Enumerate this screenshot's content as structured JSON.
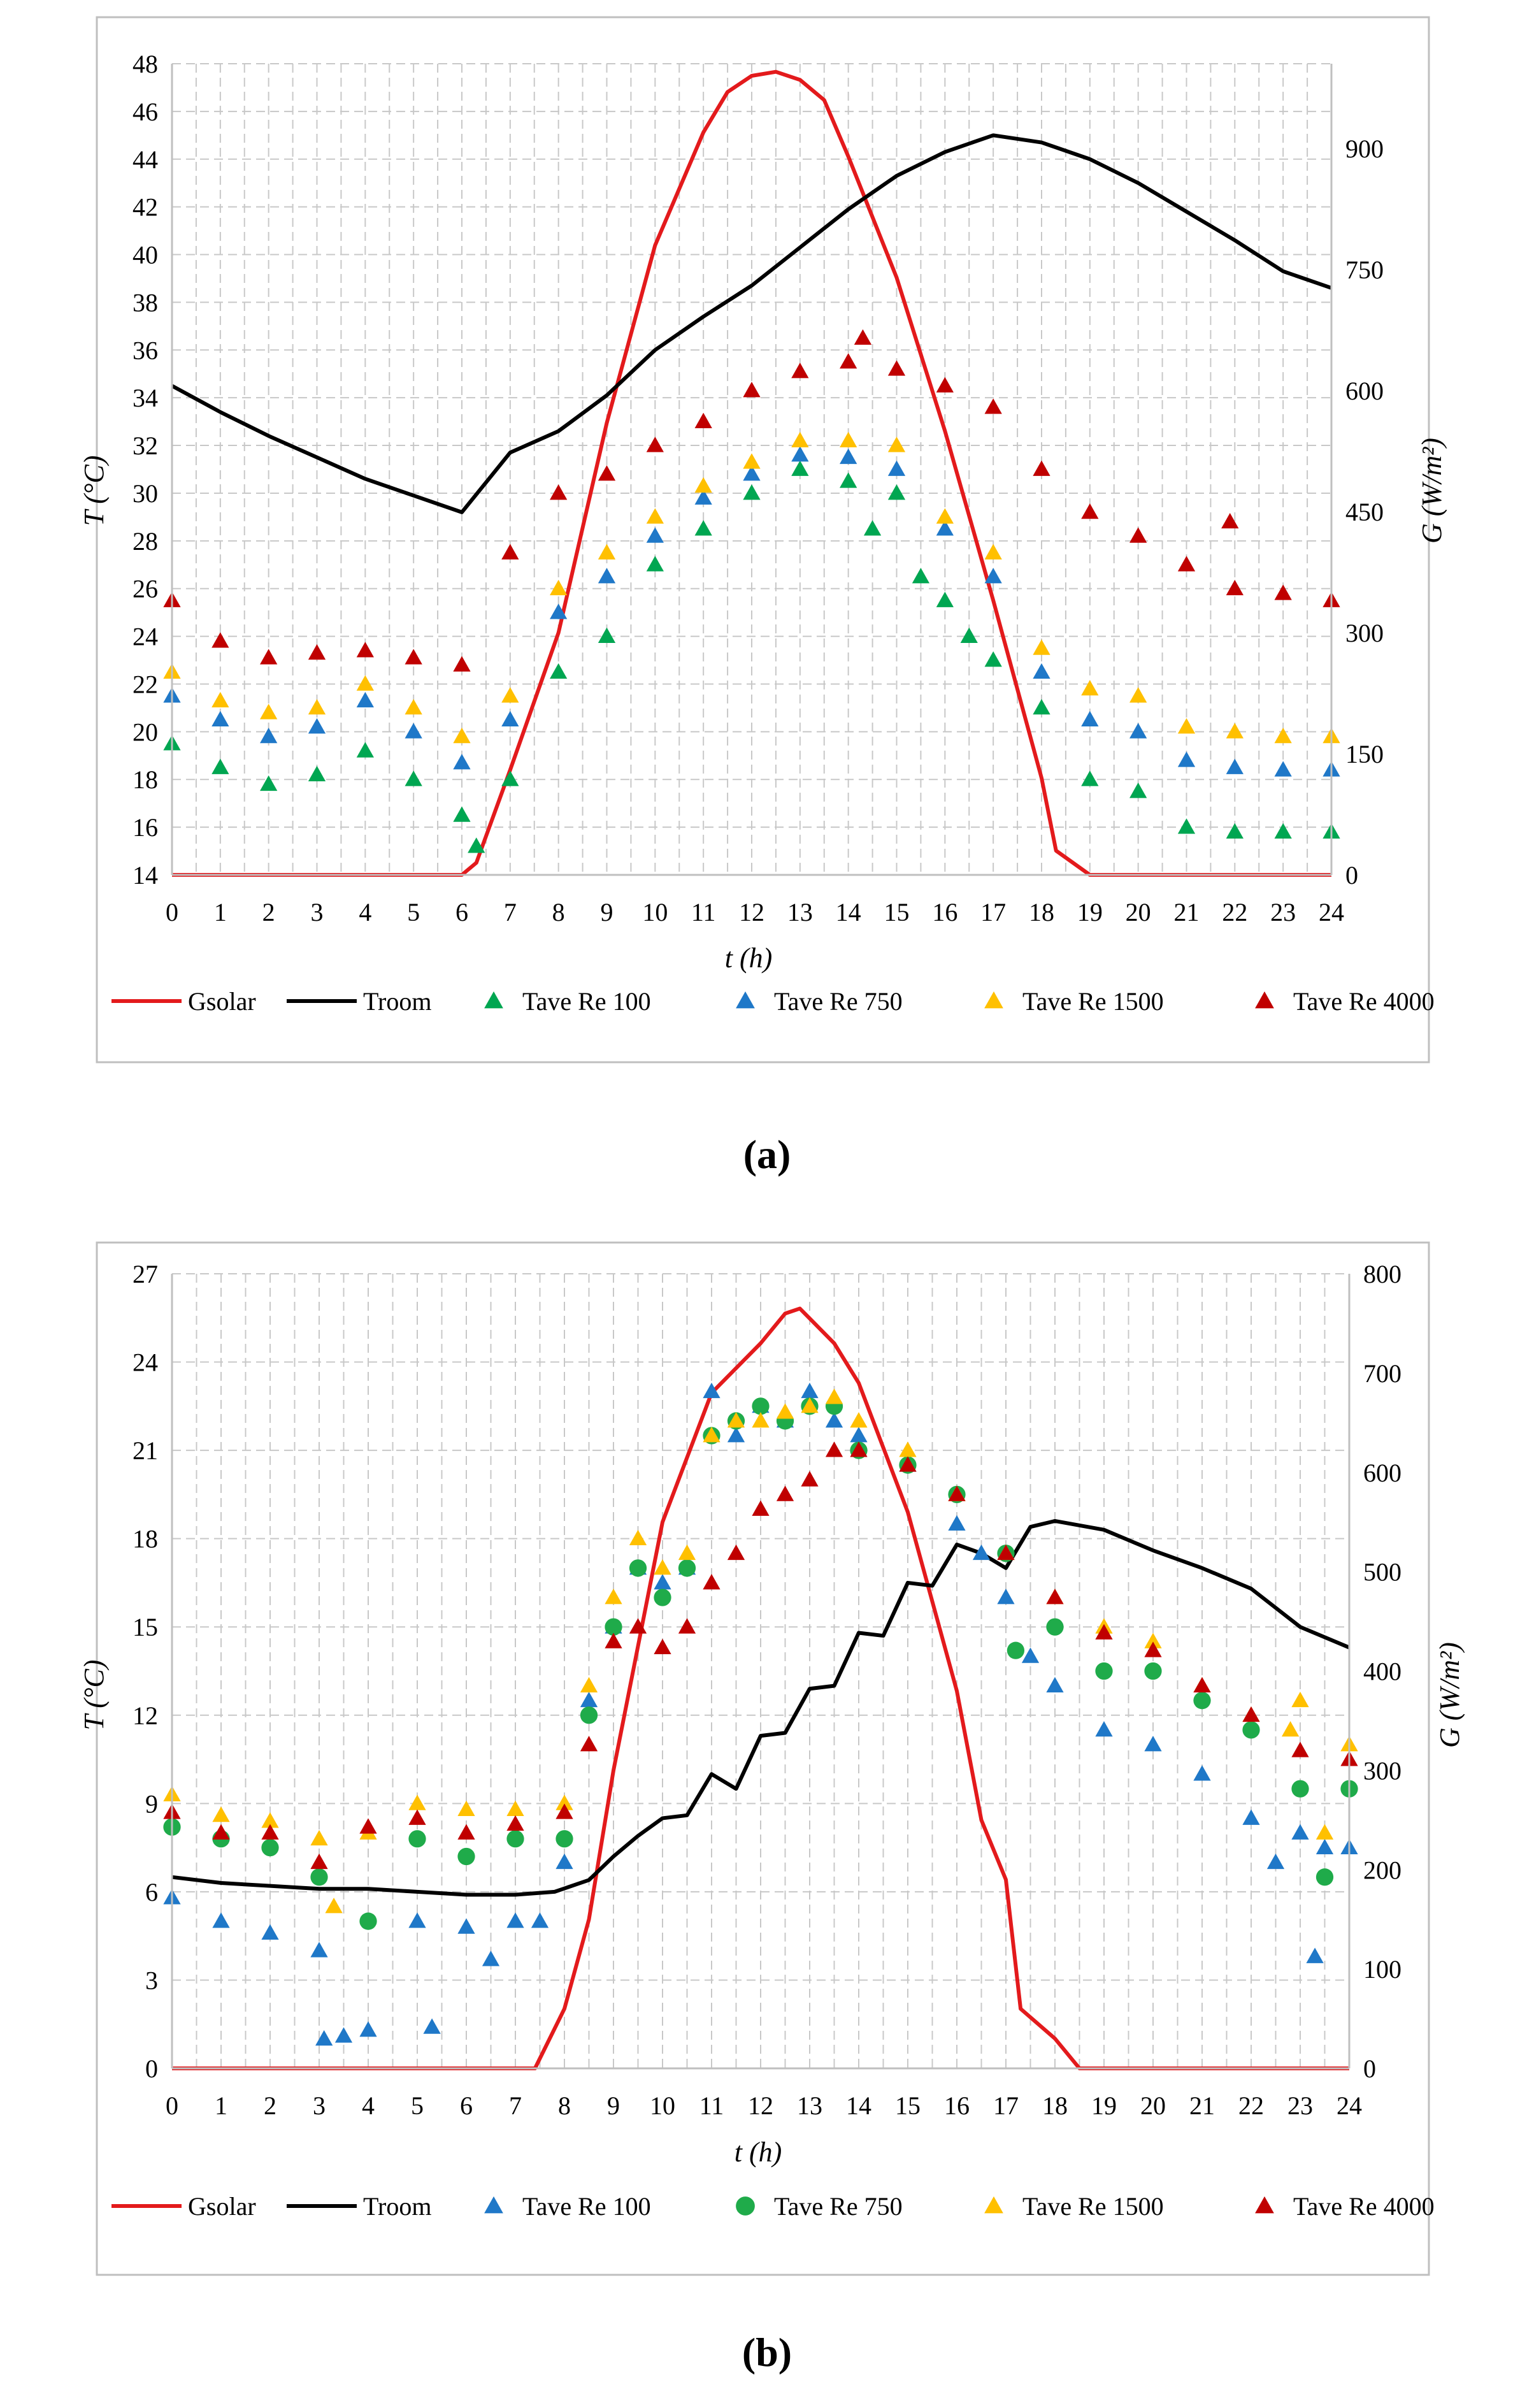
{
  "colors": {
    "gsolar": "#e31a1c",
    "troom": "#000000",
    "re100_a": "#00a651",
    "re750_a": "#1f78c8",
    "re1500": "#ffc000",
    "re4000": "#c00000",
    "re100_b": "#1f78c8",
    "re750_b": "#1fab4a",
    "grid": "#c8c8c8"
  },
  "figure": {
    "caption_a": "(a)",
    "caption_b": "(b)"
  },
  "chart_data": [
    {
      "id": "a",
      "type": "line",
      "caption": "(a)",
      "xlabel": "t (h)",
      "ylabel": "T (°C)",
      "y2label": "G (W/m²)",
      "xlim": [
        0,
        24
      ],
      "ylim": [
        14,
        48
      ],
      "y2lim": [
        0,
        1005
      ],
      "xticks": [
        "0",
        "1",
        "2",
        "3",
        "4",
        "5",
        "6",
        "7",
        "8",
        "9",
        "10",
        "11",
        "12",
        "13",
        "14",
        "15",
        "16",
        "17",
        "18",
        "19",
        "20",
        "21",
        "22",
        "23",
        "24"
      ],
      "yticks": [
        "14",
        "16",
        "18",
        "20",
        "22",
        "24",
        "26",
        "28",
        "30",
        "32",
        "34",
        "36",
        "38",
        "40",
        "42",
        "44",
        "46",
        "48"
      ],
      "y2ticks": [
        "0",
        "150",
        "300",
        "450",
        "600",
        "750",
        "900"
      ],
      "grid": true,
      "legend": [
        "Gsolar",
        "Troom",
        "Tave Re 100",
        "Tave Re 750",
        "Tave Re 1500",
        "Tave Re 4000"
      ],
      "series": [
        {
          "name": "Gsolar",
          "kind": "line",
          "axis": "right",
          "color": "#e31a1c",
          "x": [
            0,
            6,
            6.3,
            7,
            8,
            9,
            10,
            11,
            11.5,
            12,
            12.5,
            13,
            13.5,
            14,
            15,
            16,
            17,
            17.5,
            18,
            18.3,
            19,
            24
          ],
          "y": [
            0,
            0,
            15,
            130,
            300,
            560,
            780,
            920,
            970,
            990,
            995,
            985,
            960,
            890,
            740,
            550,
            340,
            230,
            120,
            30,
            0,
            0
          ]
        },
        {
          "name": "Troom",
          "kind": "line",
          "axis": "left",
          "color": "#000000",
          "x": [
            0,
            1,
            2,
            3,
            4,
            5,
            6,
            7,
            8,
            9,
            10,
            11,
            12,
            13,
            14,
            15,
            16,
            17,
            18,
            19,
            20,
            21,
            22,
            23,
            24
          ],
          "y": [
            34.5,
            33.4,
            32.4,
            31.5,
            30.6,
            29.9,
            29.2,
            31.7,
            32.6,
            34.1,
            36.0,
            37.4,
            38.7,
            40.3,
            41.9,
            43.3,
            44.3,
            45.0,
            44.7,
            44.0,
            43.0,
            41.8,
            40.6,
            39.3,
            38.6
          ]
        },
        {
          "name": "Tave Re 100",
          "kind": "triangle",
          "axis": "left",
          "color": "#00a651",
          "x": [
            0,
            1,
            2,
            3,
            4,
            5,
            6,
            6.3,
            7,
            8,
            9,
            10,
            11,
            12,
            13,
            14,
            14.5,
            15,
            15.5,
            16,
            16.5,
            17,
            18,
            19,
            20,
            21,
            22,
            23,
            24
          ],
          "y": [
            19.5,
            18.5,
            17.8,
            18.2,
            19.2,
            18.0,
            16.5,
            15.2,
            18.0,
            22.5,
            24.0,
            27.0,
            28.5,
            30.0,
            31.0,
            30.5,
            28.5,
            30.0,
            26.5,
            25.5,
            24.0,
            23.0,
            21.0,
            18.0,
            17.5,
            16.0,
            15.8,
            15.8,
            15.8
          ]
        },
        {
          "name": "Tave Re 750",
          "kind": "triangle",
          "axis": "left",
          "color": "#1f78c8",
          "x": [
            0,
            1,
            2,
            3,
            4,
            5,
            6,
            7,
            8,
            9,
            10,
            11,
            12,
            13,
            14,
            15,
            16,
            17,
            18,
            19,
            20,
            21,
            22,
            23,
            24
          ],
          "y": [
            21.5,
            20.5,
            19.8,
            20.2,
            21.3,
            20.0,
            18.7,
            20.5,
            25.0,
            26.5,
            28.2,
            29.8,
            30.8,
            31.6,
            31.5,
            31.0,
            28.5,
            26.5,
            22.5,
            20.5,
            20.0,
            18.8,
            18.5,
            18.4,
            18.4
          ]
        },
        {
          "name": "Tave Re 1500",
          "kind": "triangle",
          "axis": "left",
          "color": "#ffc000",
          "x": [
            0,
            1,
            2,
            3,
            4,
            5,
            6,
            7,
            8,
            9,
            10,
            11,
            12,
            13,
            14,
            15,
            16,
            17,
            18,
            19,
            20,
            21,
            22,
            23,
            24
          ],
          "y": [
            22.5,
            21.3,
            20.8,
            21.0,
            22.0,
            21.0,
            19.8,
            21.5,
            26.0,
            27.5,
            29.0,
            30.3,
            31.3,
            32.2,
            32.2,
            32.0,
            29.0,
            27.5,
            23.5,
            21.8,
            21.5,
            20.2,
            20.0,
            19.8,
            19.8
          ]
        },
        {
          "name": "Tave Re 4000",
          "kind": "triangle",
          "axis": "left",
          "color": "#c00000",
          "x": [
            0,
            1,
            2,
            3,
            4,
            5,
            6,
            7,
            8,
            9,
            10,
            11,
            12,
            13,
            14,
            14.3,
            15,
            16,
            17,
            18,
            19,
            20,
            21,
            21.9,
            22,
            23,
            24
          ],
          "y": [
            25.5,
            23.8,
            23.1,
            23.3,
            23.4,
            23.1,
            22.8,
            27.5,
            30.0,
            30.8,
            32.0,
            33.0,
            34.3,
            35.1,
            35.5,
            36.5,
            35.2,
            34.5,
            33.6,
            31.0,
            29.2,
            28.2,
            27.0,
            28.8,
            26.0,
            25.8,
            25.5
          ]
        }
      ]
    },
    {
      "id": "b",
      "type": "line",
      "caption": "(b)",
      "xlabel": "t (h)",
      "ylabel": "T (°C)",
      "y2label": "G (W/m²)",
      "xlim": [
        0,
        24
      ],
      "ylim": [
        0,
        27
      ],
      "y2lim": [
        0,
        800
      ],
      "xticks": [
        "0",
        "1",
        "2",
        "3",
        "4",
        "5",
        "6",
        "7",
        "8",
        "9",
        "10",
        "11",
        "12",
        "13",
        "14",
        "15",
        "16",
        "17",
        "18",
        "19",
        "20",
        "21",
        "22",
        "23",
        "24"
      ],
      "yticks": [
        "0",
        "3",
        "6",
        "9",
        "12",
        "15",
        "18",
        "21",
        "24",
        "27"
      ],
      "y2ticks": [
        "0",
        "100",
        "200",
        "300",
        "400",
        "500",
        "600",
        "700",
        "800"
      ],
      "grid": true,
      "legend": [
        "Gsolar",
        "Troom",
        "Tave Re 100",
        "Tave Re 750",
        "Tave Re 1500",
        "Tave Re 4000"
      ],
      "series": [
        {
          "name": "Gsolar",
          "kind": "line",
          "axis": "right",
          "color": "#e31a1c",
          "x": [
            0,
            7.4,
            8,
            8.5,
            9,
            10,
            11,
            12,
            12.5,
            12.8,
            13,
            13.5,
            14,
            15,
            16,
            16.5,
            17,
            17.3,
            18,
            18.5,
            24
          ],
          "y": [
            0,
            0,
            60,
            150,
            300,
            550,
            680,
            730,
            760,
            765,
            755,
            730,
            690,
            560,
            380,
            250,
            190,
            60,
            30,
            0,
            0
          ]
        },
        {
          "name": "Troom",
          "kind": "line",
          "axis": "left",
          "color": "#000000",
          "x": [
            0,
            1,
            2,
            3,
            4,
            5,
            6,
            7,
            7.8,
            8.5,
            9,
            9.5,
            10,
            10.5,
            11,
            11.5,
            12,
            12.5,
            13,
            13.5,
            14,
            14.5,
            15,
            15.5,
            16,
            16.5,
            17,
            17.5,
            18,
            19,
            20,
            21,
            22,
            23,
            24
          ],
          "y": [
            6.5,
            6.3,
            6.2,
            6.1,
            6.1,
            6.0,
            5.9,
            5.9,
            6.0,
            6.4,
            7.2,
            7.9,
            8.5,
            8.6,
            10.0,
            9.5,
            11.3,
            11.4,
            12.9,
            13.0,
            14.8,
            14.7,
            16.5,
            16.4,
            17.8,
            17.5,
            17.0,
            18.4,
            18.6,
            18.3,
            17.6,
            17.0,
            16.3,
            15.0,
            14.3
          ]
        },
        {
          "name": "Tave Re 100",
          "kind": "triangle",
          "axis": "left",
          "color": "#1f78c8",
          "x": [
            0,
            1,
            2,
            3,
            3.1,
            3.5,
            4,
            5,
            5.3,
            6,
            6.5,
            7,
            7.5,
            8,
            8.5,
            9,
            9.5,
            10,
            10.5,
            11,
            11.5,
            12,
            12.5,
            13,
            13.5,
            14,
            15,
            16,
            16.5,
            17,
            17.5,
            18,
            19,
            20,
            21,
            22,
            22.5,
            23,
            23.3,
            23.5,
            24
          ],
          "y": [
            5.8,
            5.0,
            4.6,
            4.0,
            1.0,
            1.1,
            1.3,
            5.0,
            1.4,
            4.8,
            3.7,
            5.0,
            5.0,
            7.0,
            12.5,
            15.0,
            17.0,
            16.5,
            17.0,
            23.0,
            21.5,
            22.5,
            22.0,
            23.0,
            22.0,
            21.5,
            20.5,
            18.5,
            17.5,
            16.0,
            14.0,
            13.0,
            11.5,
            11.0,
            10.0,
            8.5,
            7.0,
            8.0,
            3.8,
            7.5,
            7.5
          ]
        },
        {
          "name": "Tave Re 750",
          "kind": "circle",
          "axis": "left",
          "color": "#1fab4a",
          "x": [
            0,
            1,
            2,
            3,
            4,
            5,
            6,
            7,
            8,
            8.5,
            9,
            9.5,
            10,
            10.5,
            11,
            11.5,
            12,
            12.5,
            13,
            13.5,
            14,
            15,
            16,
            17,
            17.2,
            18,
            19,
            20,
            21,
            22,
            23,
            23.5,
            24
          ],
          "y": [
            8.2,
            7.8,
            7.5,
            6.5,
            5.0,
            7.8,
            7.2,
            7.8,
            7.8,
            12.0,
            15.0,
            17.0,
            16.0,
            17.0,
            21.5,
            22.0,
            22.5,
            22.0,
            22.5,
            22.5,
            21.0,
            20.5,
            19.5,
            17.5,
            14.2,
            15.0,
            13.5,
            13.5,
            12.5,
            11.5,
            9.5,
            6.5,
            9.5
          ]
        },
        {
          "name": "Tave Re 1500",
          "kind": "triangle",
          "axis": "left",
          "color": "#ffc000",
          "x": [
            0,
            1,
            2,
            3,
            3.3,
            4,
            5,
            6,
            7,
            8,
            8.5,
            9,
            9.5,
            10,
            10.5,
            11,
            11.5,
            12,
            12.5,
            13,
            13.5,
            14,
            15,
            16,
            17,
            18,
            19,
            20,
            21,
            22,
            22.8,
            23,
            23.5,
            24
          ],
          "y": [
            9.3,
            8.6,
            8.4,
            7.8,
            5.5,
            8.0,
            9.0,
            8.8,
            8.8,
            9.0,
            13.0,
            16.0,
            18.0,
            17.0,
            17.5,
            21.5,
            22.0,
            22.0,
            22.3,
            22.5,
            22.8,
            22.0,
            21.0,
            19.5,
            17.5,
            16.0,
            15.0,
            14.5,
            13.0,
            12.0,
            11.5,
            12.5,
            8.0,
            11.0
          ]
        },
        {
          "name": "Tave Re 4000",
          "kind": "triangle",
          "axis": "left",
          "color": "#c00000",
          "x": [
            0,
            1,
            2,
            3,
            4,
            5,
            6,
            7,
            8,
            8.5,
            9,
            9.5,
            10,
            10.5,
            11,
            11.5,
            12,
            12.5,
            13,
            13.5,
            14,
            15,
            16,
            17,
            18,
            19,
            20,
            21,
            22,
            23,
            24
          ],
          "y": [
            8.7,
            8.0,
            8.0,
            7.0,
            8.2,
            8.5,
            8.0,
            8.3,
            8.7,
            11.0,
            14.5,
            15.0,
            14.3,
            15.0,
            16.5,
            17.5,
            19.0,
            19.5,
            20.0,
            21.0,
            21.0,
            20.5,
            19.5,
            17.5,
            16.0,
            14.8,
            14.2,
            13.0,
            12.0,
            10.8,
            10.5
          ]
        }
      ]
    }
  ]
}
